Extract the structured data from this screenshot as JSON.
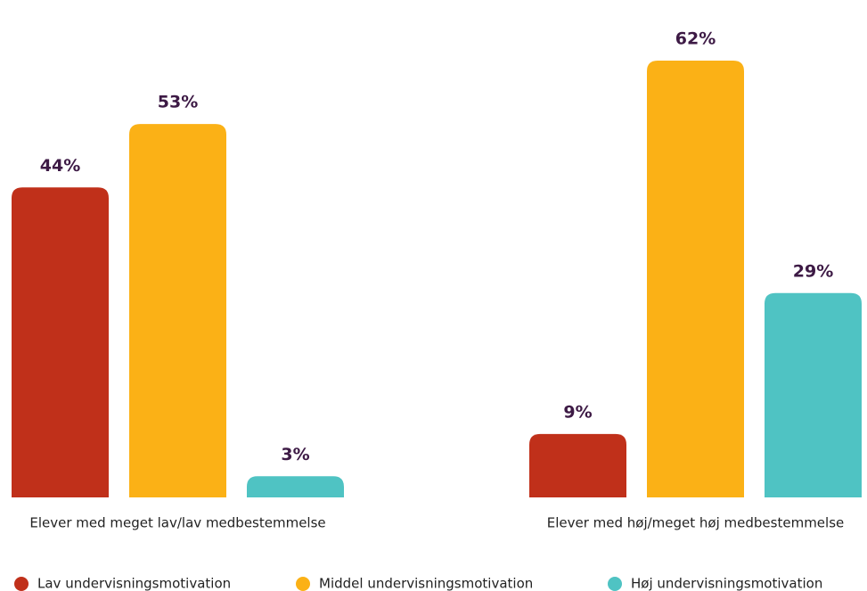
{
  "chart_data": {
    "type": "bar",
    "categories": [
      "Elever med meget lav/lav medbestemmelse",
      "Elever med høj/meget høj medbestemmelse"
    ],
    "series": [
      {
        "name": "Lav undervisningsmotivation",
        "color": "#c0301a",
        "values": [
          44,
          9
        ],
        "value_labels": [
          "44%",
          "9%"
        ]
      },
      {
        "name": "Middel undervisningsmotivation",
        "color": "#fbb116",
        "values": [
          53,
          62
        ],
        "value_labels": [
          "53%",
          "62%"
        ]
      },
      {
        "name": "Høj undervisningsmotivation",
        "color": "#4fc3c3",
        "values": [
          3,
          29
        ],
        "value_labels": [
          "3%",
          "29%"
        ]
      }
    ]
  }
}
